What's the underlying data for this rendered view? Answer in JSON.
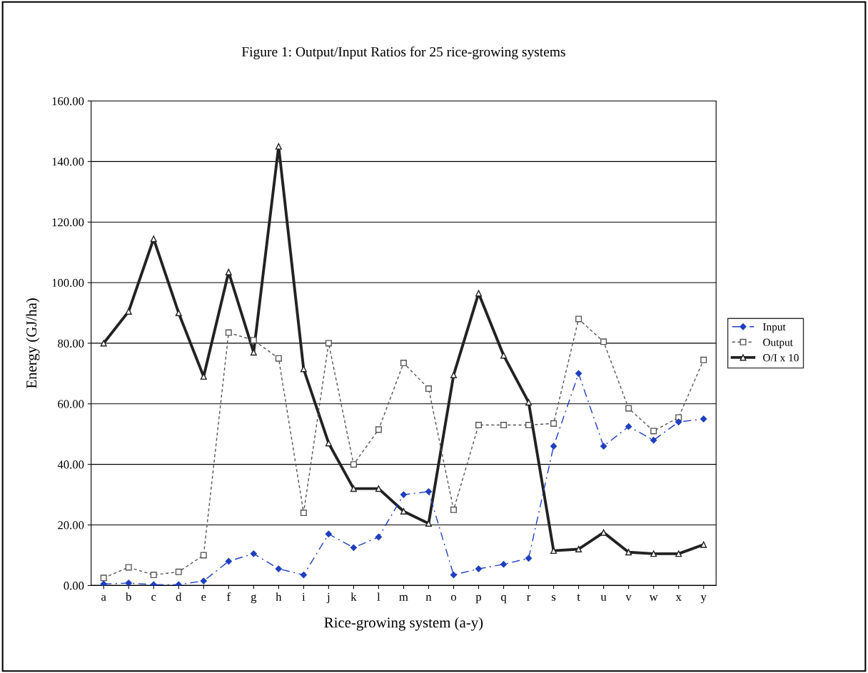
{
  "chart_data": {
    "type": "line",
    "title": "Figure 1: Output/Input Ratios for 25 rice-growing systems",
    "xlabel": "Rice-growing system (a-y)",
    "ylabel": "Energy (GJ/ha)",
    "categories": [
      "a",
      "b",
      "c",
      "d",
      "e",
      "f",
      "g",
      "h",
      "i",
      "j",
      "k",
      "l",
      "m",
      "n",
      "o",
      "p",
      "q",
      "r",
      "s",
      "t",
      "u",
      "v",
      "w",
      "x",
      "y"
    ],
    "series": [
      {
        "name": "Input",
        "color": "#1f3fbf",
        "marker": "diamond",
        "line_style": "dashed",
        "values": [
          0.5,
          0.8,
          0.3,
          0.3,
          1.5,
          8,
          10.5,
          5.5,
          3.5,
          17,
          12.5,
          16,
          30,
          31,
          3.5,
          5.5,
          7,
          9,
          46,
          70,
          46,
          52.5,
          48,
          54,
          55
        ]
      },
      {
        "name": "Output",
        "color": "#555555",
        "marker": "square",
        "line_style": "dotted",
        "values": [
          2.5,
          6,
          3.5,
          4.5,
          10,
          83.5,
          81,
          75,
          24,
          80,
          40,
          51.5,
          73.5,
          65,
          25,
          53,
          53,
          53,
          53.5,
          88,
          80.5,
          58.5,
          51,
          55.5,
          74.5
        ]
      },
      {
        "name": "O/I x 10",
        "color": "#222222",
        "marker": "triangle",
        "line_style": "solid",
        "values": [
          80,
          90.5,
          114.5,
          90,
          69,
          103.5,
          77,
          145,
          71.5,
          47,
          32,
          32,
          24.5,
          20.5,
          69.5,
          96.5,
          76,
          60.5,
          11.5,
          12,
          17.5,
          11,
          10.5,
          10.5,
          13.5
        ]
      }
    ],
    "ylim": [
      0,
      160
    ],
    "yticks": [
      {
        "value": 0,
        "label": "0.00"
      },
      {
        "value": 20,
        "label": "20.00"
      },
      {
        "value": 40,
        "label": "40.00"
      },
      {
        "value": 60,
        "label": "60.00"
      },
      {
        "value": 80,
        "label": "80.00"
      },
      {
        "value": 100,
        "label": "100.00"
      },
      {
        "value": 120,
        "label": "120.00"
      },
      {
        "value": 140,
        "label": "140.00"
      },
      {
        "value": 160,
        "label": "160.00"
      }
    ],
    "grid": "y",
    "legend": "right"
  }
}
